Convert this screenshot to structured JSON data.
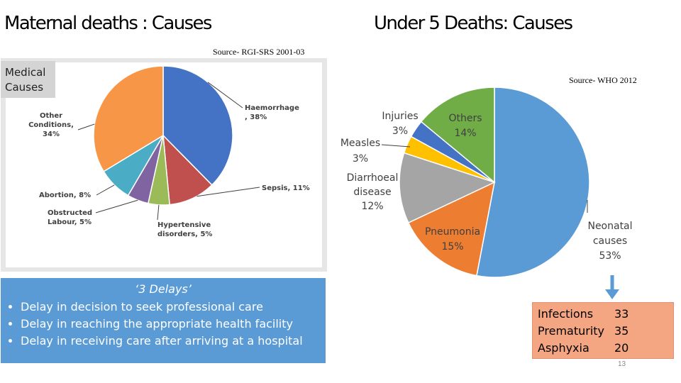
{
  "titles": {
    "maternal": "Maternal deaths : Causes",
    "under5": "Under 5 Deaths: Causes"
  },
  "sources": {
    "rgi": "Source- RGI-SRS 2001-03",
    "who": "Source- WHO 2012"
  },
  "medical_button": [
    "Medical",
    "Causes"
  ],
  "delays": {
    "heading": "‘3 Delays’",
    "items": [
      "Delay in decision to seek professional care",
      "Delay in reaching the appropriate health facility",
      "Delay in receiving care after arriving at a hospital"
    ]
  },
  "neonatal_breakdown": {
    "rows": [
      {
        "label": "Infections",
        "value": "33"
      },
      {
        "label": "Prematurity",
        "value": "35"
      },
      {
        "label": "Asphyxia",
        "value": "20"
      }
    ]
  },
  "page_number": "13",
  "colors": {
    "haemorrhage": "#4472c4",
    "sepsis": "#c0504d",
    "hypertensive": "#9bbb59",
    "obstructed": "#8064a2",
    "abortion": "#4bacc6",
    "other": "#f79646",
    "neonatal": "#5b9bd5",
    "pneumonia": "#ed7d31",
    "diarrhoeal": "#a5a5a5",
    "measles": "#ffc000",
    "injuries": "#4472c4",
    "others": "#70ad47",
    "delays_bg": "#5b9bd5",
    "neo_box_bg": "#f4a582",
    "arrow": "#5b9bd5"
  },
  "chart_data": [
    {
      "type": "pie",
      "title": "Maternal deaths : Causes",
      "categories": [
        "Haemorrhage",
        "Sepsis",
        "Hypertensive disorders",
        "Obstructed Labour",
        "Abortion",
        "Other Conditions"
      ],
      "values": [
        38,
        11,
        5,
        5,
        8,
        34
      ],
      "labels": [
        [
          "Haemorrhage",
          ", 38%"
        ],
        [
          "Sepsis, 11%"
        ],
        [
          "Hypertensive",
          "disorders, 5%"
        ],
        [
          "Obstructed",
          "Labour, 5%"
        ],
        [
          "Abortion, 8%"
        ],
        [
          "Other",
          "Conditions,",
          "34%"
        ]
      ],
      "color_keys": [
        "haemorrhage",
        "sepsis",
        "hypertensive",
        "obstructed",
        "abortion",
        "other"
      ]
    },
    {
      "type": "pie",
      "title": "Under 5 Deaths: Causes",
      "categories": [
        "Neonatal causes",
        "Pneumonia",
        "Diarrhoeal disease",
        "Measles",
        "Injuries",
        "Others"
      ],
      "values": [
        53,
        15,
        12,
        3,
        3,
        14
      ],
      "labels": [
        [
          "Neonatal",
          "causes",
          "53%"
        ],
        [
          "Pneumonia",
          "15%"
        ],
        [
          "Diarrhoeal",
          "disease",
          "12%"
        ],
        [
          "Measles",
          "3%"
        ],
        [
          "Injuries",
          "3%"
        ],
        [
          "Others",
          "14%"
        ]
      ],
      "color_keys": [
        "neonatal",
        "pneumonia",
        "diarrhoeal",
        "measles",
        "injuries",
        "others"
      ]
    }
  ]
}
